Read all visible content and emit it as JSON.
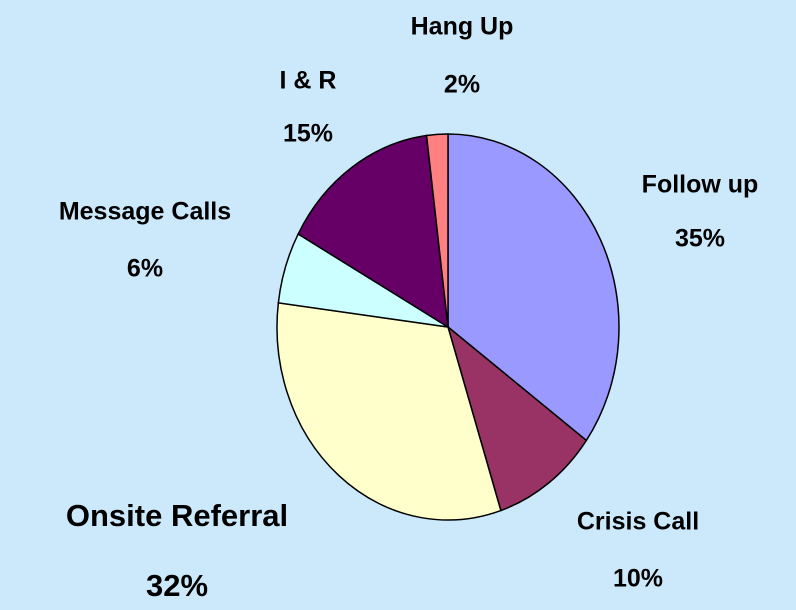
{
  "chart_data": {
    "type": "pie",
    "categories": [
      "Follow up",
      "Crisis Call",
      "Onsite Referral",
      "Message Calls",
      "I & R",
      "Hang Up"
    ],
    "values": [
      35,
      10,
      32,
      6,
      15,
      2
    ],
    "value_labels": [
      "35%",
      "10%",
      "32%",
      "6%",
      "15%",
      "2%"
    ],
    "colors": [
      "#9999ff",
      "#993366",
      "#ffffcc",
      "#ccffff",
      "#660066",
      "#ff8080"
    ]
  }
}
